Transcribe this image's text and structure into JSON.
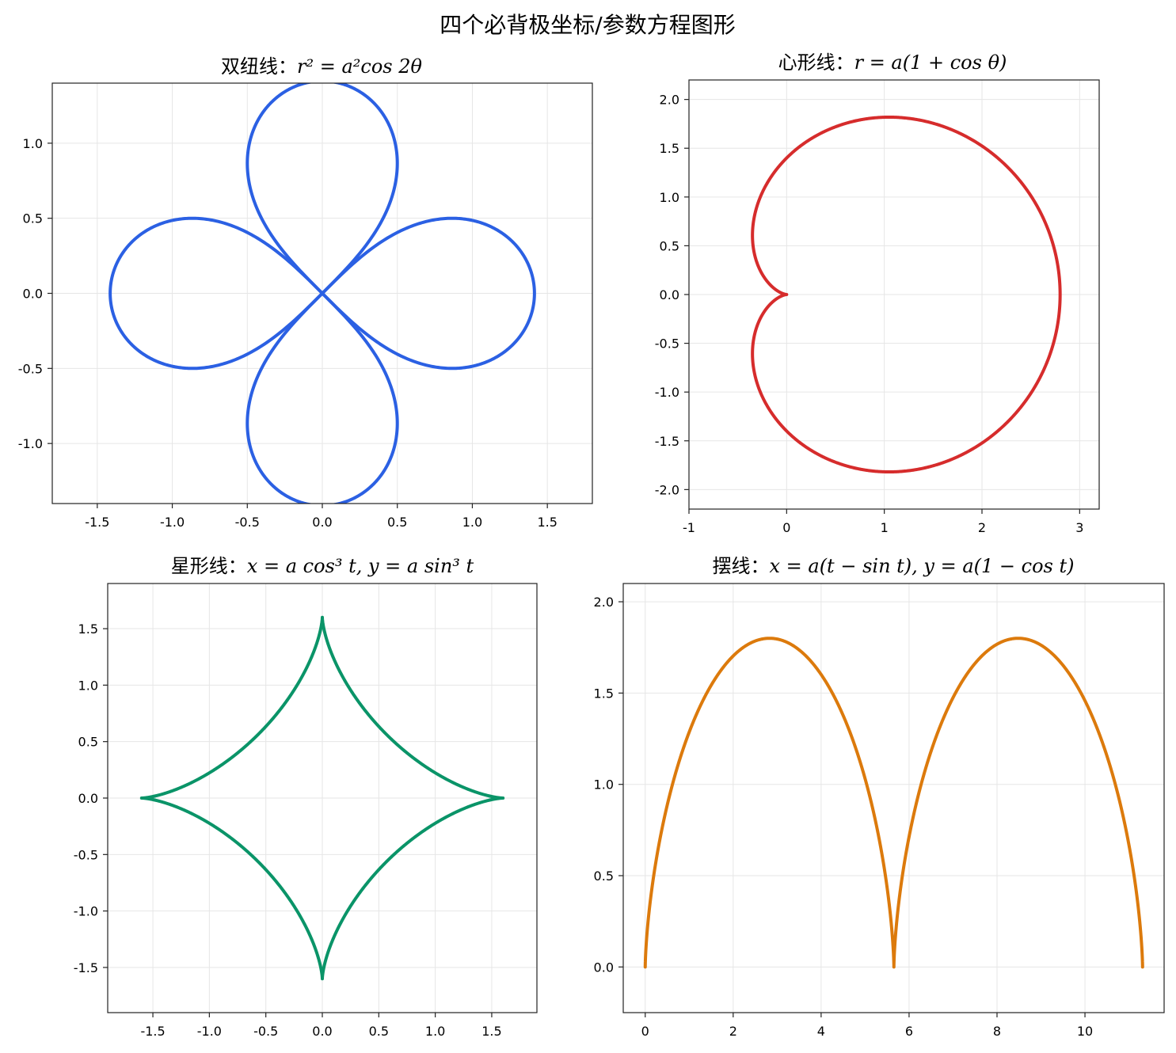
{
  "figure": {
    "title": "四个必背极坐标/参数方程图形"
  },
  "chart_data": [
    {
      "type": "line",
      "curve": "lemniscate",
      "title_prefix": "双纽线：",
      "title_math": "r² = a²cos 2θ",
      "equation": "r^2 = a^2 cos(2θ), a = 1.414 (crossed: ±45° variant)",
      "color": "#2b60e3",
      "xlim": [
        -1.8,
        1.8
      ],
      "ylim": [
        -1.4,
        1.4
      ],
      "xticks": [
        -1.5,
        -1.0,
        -0.5,
        0.0,
        0.5,
        1.0,
        1.5
      ],
      "xtick_labels": [
        "-1.5",
        "-1.0",
        "-0.5",
        "0.0",
        "0.5",
        "1.0",
        "1.5"
      ],
      "yticks": [
        -1.0,
        -0.5,
        0.0,
        0.5,
        1.0
      ],
      "ytick_labels": [
        "-1.0",
        "-0.5",
        "0.0",
        "0.5",
        "1.0"
      ],
      "grid": true,
      "params": {
        "a": 1.414
      }
    },
    {
      "type": "line",
      "curve": "cardioid",
      "title_prefix": "心形线：",
      "title_math": "r = a(1 + cos θ)",
      "color": "#d62c2c",
      "xlim": [
        -1.0,
        3.2
      ],
      "ylim": [
        -2.2,
        2.2
      ],
      "xticks": [
        -1,
        0,
        1,
        2,
        3
      ],
      "xtick_labels": [
        "-1",
        "0",
        "1",
        "2",
        "3"
      ],
      "yticks": [
        -2.0,
        -1.5,
        -1.0,
        -0.5,
        0.0,
        0.5,
        1.0,
        1.5,
        2.0
      ],
      "ytick_labels": [
        "-2.0",
        "-1.5",
        "-1.0",
        "-0.5",
        "0.0",
        "0.5",
        "1.0",
        "1.5",
        "2.0"
      ],
      "grid": true,
      "params": {
        "a": 1.4
      }
    },
    {
      "type": "line",
      "curve": "astroid",
      "title_prefix": "星形线：",
      "title_math": "x = a cos³ t,  y = a sin³ t",
      "color": "#0a9468",
      "xlim": [
        -1.9,
        1.9
      ],
      "ylim": [
        -1.9,
        1.9
      ],
      "xticks": [
        -1.5,
        -1.0,
        -0.5,
        0.0,
        0.5,
        1.0,
        1.5
      ],
      "xtick_labels": [
        "-1.5",
        "-1.0",
        "-0.5",
        "0.0",
        "0.5",
        "1.0",
        "1.5"
      ],
      "yticks": [
        -1.5,
        -1.0,
        -0.5,
        0.0,
        0.5,
        1.0,
        1.5
      ],
      "ytick_labels": [
        "-1.5",
        "-1.0",
        "-0.5",
        "0.0",
        "0.5",
        "1.0",
        "1.5"
      ],
      "grid": true,
      "params": {
        "a": 1.6
      }
    },
    {
      "type": "line",
      "curve": "cycloid",
      "title_prefix": "摆线：",
      "title_math": "x = a(t − sin t),  y = a(1 − cos t)",
      "color": "#dc7a0c",
      "xlim": [
        -0.5,
        11.8
      ],
      "ylim": [
        -0.25,
        2.1
      ],
      "xticks": [
        0,
        2,
        4,
        6,
        8,
        10
      ],
      "xtick_labels": [
        "0",
        "2",
        "4",
        "6",
        "8",
        "10"
      ],
      "yticks": [
        0.0,
        0.5,
        1.0,
        1.5,
        2.0
      ],
      "ytick_labels": [
        "0.0",
        "0.5",
        "1.0",
        "1.5",
        "2.0"
      ],
      "grid": true,
      "params": {
        "a": 0.9,
        "t_max_periods": 2
      }
    }
  ]
}
